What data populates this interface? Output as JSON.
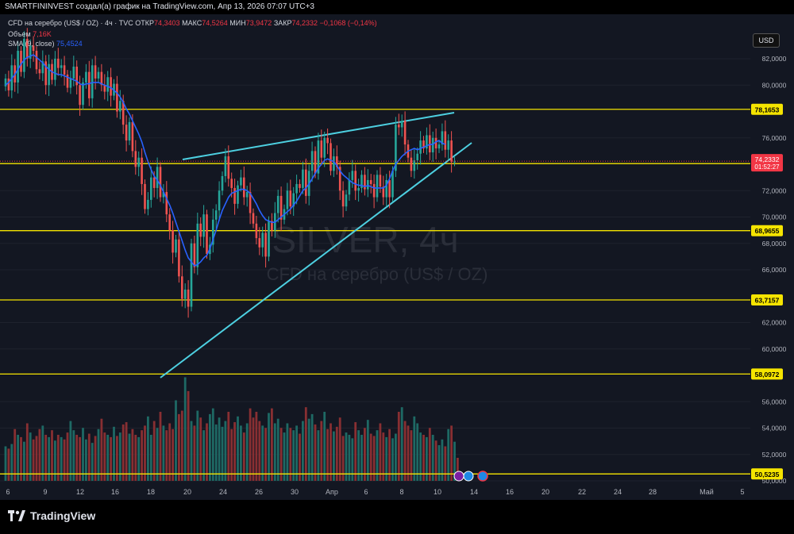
{
  "header": {
    "attribution": "SMARTFININVEST создал(а) график на TradingView.com, Апр 13, 2026 07:07 UTC+3"
  },
  "legend": {
    "line1_symbol": "CFD на серебро (US$ / OZ) · 4ч · TVC",
    "line1_open_label": "ОТКР",
    "line1_open": "74,3403",
    "line1_high_label": "МАКС",
    "line1_high": "74,5264",
    "line1_low_label": "МИН",
    "line1_low": "73,9472",
    "line1_close_label": "ЗАКР",
    "line1_close": "74,2332",
    "line1_change": "−0,1068 (−0,14%)",
    "line2_label": "Объем",
    "line2_value": "7,16K",
    "line3_label": "SMA (9, close)",
    "line3_value": "75,4524"
  },
  "currency_button": "USD",
  "watermark": {
    "symbol": "SILVER, 4ч",
    "description": "CFD на серебро (US$ / OZ)"
  },
  "footer": {
    "brand": "TradingView"
  },
  "colors": {
    "up": "#26a69a",
    "down": "#ef5350",
    "sma": "#2962ff",
    "trend": "#4dd0e1",
    "level": "#f5e400",
    "bg": "#131722"
  },
  "chart_data": {
    "type": "candlestick",
    "ylim": [
      50,
      84
    ],
    "y_ticks": [
      "82,0000",
      "80,0000",
      "76,0000",
      "72,0000",
      "70,0000",
      "68,0000",
      "66,0000",
      "62,0000",
      "60,0000",
      "56,0000",
      "54,0000",
      "52,0000",
      "50,0000"
    ],
    "x_ticks": [
      "6",
      "9",
      "12",
      "16",
      "18",
      "20",
      "24",
      "26",
      "30",
      "Апр",
      "6",
      "8",
      "10",
      "14",
      "16",
      "20",
      "22",
      "24",
      "28",
      "Май",
      "5"
    ],
    "horizontal_levels": [
      "78,1653",
      "74,0485",
      "68,9655",
      "63,7157",
      "58,0972",
      "50,5235"
    ],
    "price_label": {
      "value": "74,2332",
      "countdown": "01:52:27"
    },
    "closes": [
      80.5,
      79.6,
      81.5,
      80.2,
      82.6,
      81.0,
      83.5,
      82.0,
      83.0,
      82.6,
      81.2,
      80.9,
      81.8,
      80.0,
      81.6,
      80.4,
      82.0,
      81.3,
      81.5,
      80.8,
      79.8,
      80.5,
      81.4,
      80.0,
      78.5,
      80.2,
      81.0,
      79.0,
      81.5,
      80.5,
      81.0,
      80.0,
      79.5,
      80.6,
      79.2,
      80.1,
      78.0,
      78.8,
      77.0,
      75.8,
      77.2,
      75.0,
      73.8,
      74.5,
      72.5,
      70.6,
      71.3,
      73.0,
      72.2,
      73.8,
      71.5,
      71.9,
      70.2,
      69.0,
      67.3,
      68.3,
      65.5,
      63.8,
      64.5,
      63.2,
      68.0,
      66.2,
      69.5,
      68.5,
      70.2,
      67.2,
      67.9,
      69.8,
      70.5,
      72.0,
      73.1,
      74.6,
      72.9,
      72.2,
      71.0,
      72.4,
      73.0,
      71.5,
      71.9,
      70.3,
      69.5,
      68.4,
      67.7,
      68.8,
      67.0,
      69.7,
      69.0,
      70.3,
      71.6,
      69.8,
      70.6,
      72.0,
      70.8,
      71.8,
      72.5,
      72.2,
      73.6,
      71.6,
      73.5,
      75.0,
      73.3,
      75.8,
      74.5,
      76.0,
      75.6,
      73.5,
      74.6,
      73.8,
      72.0,
      70.8,
      71.7,
      72.8,
      73.5,
      72.0,
      72.2,
      73.2,
      72.1,
      72.8,
      72.5,
      71.5,
      73.2,
      72.3,
      71.5,
      72.8,
      71.5,
      73.5,
      77.0,
      76.8,
      77.3,
      75.5,
      74.5,
      73.5,
      74.3,
      74.8,
      75.8,
      75.2,
      76.2,
      74.9,
      76.0,
      75.2,
      75.5,
      76.5,
      75.1,
      75.8,
      74.2,
      74.2
    ],
    "sma9": [
      80.0,
      80.2,
      80.5,
      80.8,
      81.2,
      81.6,
      81.9,
      82.1,
      82.2,
      82.3,
      82.1,
      81.9,
      81.7,
      81.4,
      81.2,
      81.0,
      80.9,
      80.8,
      80.8,
      80.7,
      80.6,
      80.5,
      80.4,
      80.3,
      80.1,
      80.0,
      80.1,
      80.1,
      80.2,
      80.2,
      80.2,
      80.1,
      80.0,
      79.9,
      79.8,
      79.6,
      79.4,
      79.1,
      78.7,
      78.2,
      77.8,
      77.3,
      76.8,
      76.3,
      75.7,
      74.9,
      74.2,
      73.6,
      73.1,
      72.8,
      72.4,
      71.9,
      71.4,
      70.9,
      70.3,
      69.6,
      68.9,
      68.2,
      67.5,
      66.9,
      66.6,
      66.3,
      66.4,
      66.6,
      66.9,
      67.1,
      67.6,
      68.3,
      69.0,
      69.8,
      70.5,
      71.0,
      71.5,
      71.8,
      71.9,
      72.0,
      72.1,
      72.1,
      72.0,
      71.8,
      71.4,
      71.0,
      70.5,
      70.1,
      69.8,
      69.7,
      69.6,
      69.6,
      69.8,
      70.0,
      70.2,
      70.4,
      70.6,
      70.9,
      71.2,
      71.6,
      72.0,
      72.2,
      72.5,
      72.9,
      73.3,
      73.7,
      74.0,
      74.3,
      74.4,
      74.3,
      74.2,
      73.9,
      73.5,
      73.2,
      73.0,
      72.8,
      72.6,
      72.5,
      72.4,
      72.4,
      72.3,
      72.4,
      72.3,
      72.2,
      72.2,
      72.2,
      72.2,
      72.4,
      72.9,
      73.5,
      74.0,
      74.3,
      74.6,
      74.8,
      75.0,
      75.1,
      75.2,
      75.1,
      75.2,
      75.3,
      75.4,
      75.5,
      75.5,
      75.7,
      75.8,
      75.6,
      75.5
    ],
    "volume": [
      30,
      28,
      32,
      45,
      40,
      38,
      34,
      50,
      42,
      36,
      39,
      45,
      48,
      40,
      38,
      44,
      35,
      40,
      38,
      36,
      42,
      52,
      44,
      40,
      38,
      46,
      36,
      41,
      33,
      39,
      45,
      54,
      42,
      40,
      38,
      47,
      39,
      42,
      49,
      51,
      41,
      45,
      40,
      38,
      44,
      48,
      56,
      40,
      52,
      46,
      60,
      48,
      44,
      50,
      45,
      70,
      58,
      61,
      90,
      78,
      52,
      48,
      61,
      55,
      44,
      50,
      58,
      63,
      49,
      55,
      47,
      52,
      60,
      45,
      51,
      56,
      48,
      42,
      50,
      63,
      55,
      60,
      52,
      48,
      46,
      59,
      63,
      50,
      54,
      46,
      42,
      50,
      46,
      44,
      48,
      41,
      52,
      64,
      54,
      58,
      49,
      44,
      52,
      60,
      45,
      50,
      43,
      47,
      55,
      39,
      42,
      40,
      37,
      51,
      44,
      40,
      46,
      53,
      41,
      39,
      44,
      50,
      42,
      38,
      45,
      37,
      41,
      60,
      64,
      52,
      48,
      44,
      56,
      50,
      42,
      40,
      38,
      46,
      40,
      35,
      31,
      36,
      30,
      45,
      48,
      34,
      20
    ]
  }
}
